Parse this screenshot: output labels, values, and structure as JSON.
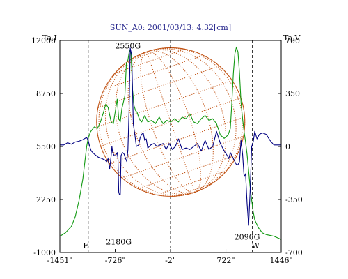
{
  "chart_data": {
    "type": "line",
    "title": "SUN_A0: 2001/03/13: 4.32[cm]",
    "left_axis_label": "Ta,I",
    "right_axis_label": "Ta,V",
    "x_ticks": [
      {
        "label": "-1451\"",
        "value": -1451
      },
      {
        "label": "-726\"",
        "value": -726
      },
      {
        "label": "-2\"",
        "value": -2
      },
      {
        "label": "722\"",
        "value": 722
      },
      {
        "label": "1446\"",
        "value": 1446
      }
    ],
    "y_left_ticks": [
      {
        "label": "12000",
        "value": 12000
      },
      {
        "label": "8750",
        "value": 8750
      },
      {
        "label": "5500",
        "value": 5500
      },
      {
        "label": "2250",
        "value": 2250
      },
      {
        "label": "-1000",
        "value": -1000
      }
    ],
    "y_right_ticks": [
      {
        "label": "700",
        "value": 700
      },
      {
        "label": "350",
        "value": 350
      },
      {
        "label": "0",
        "value": 0
      },
      {
        "label": "-350",
        "value": -350
      },
      {
        "label": "-700",
        "value": -700
      }
    ],
    "xlim": [
      -1451,
      1446
    ],
    "ylim_left": [
      -1000,
      12000
    ],
    "ylim_right": [
      -700,
      700
    ],
    "solar_limb_radius": 970,
    "dashed_lines_x": [
      -1080,
      -2,
      1070
    ],
    "annotations": [
      {
        "text": "2550G",
        "x": -560,
        "y_left": 11500
      },
      {
        "text": "2180G",
        "x": -680,
        "y_left": -500
      },
      {
        "text": "2090G",
        "x": 1000,
        "y_left": -200
      },
      {
        "text": "E",
        "x": -1110,
        "y_left": -1000
      },
      {
        "text": "W",
        "x": 1110,
        "y_left": -1000
      }
    ],
    "colors": {
      "I": "#119911",
      "V": "#000080",
      "disk": "#c05010",
      "frame": "#000000"
    },
    "series": [
      {
        "axis": "left",
        "x": [
          -1451,
          -1380,
          -1300,
          -1250,
          -1200,
          -1150,
          -1120,
          -1100,
          -1080,
          -1050,
          -1000,
          -960,
          -920,
          -880,
          -850,
          -820,
          -780,
          -750,
          -720,
          -700,
          -680,
          -660,
          -640,
          -620,
          -600,
          -580,
          -560,
          -540,
          -520,
          -500,
          -480,
          -460,
          -440,
          -420,
          -400,
          -380,
          -360,
          -340,
          -320,
          -300,
          -250,
          -200,
          -150,
          -100,
          -50,
          0,
          50,
          100,
          150,
          200,
          250,
          300,
          350,
          400,
          450,
          500,
          550,
          600,
          650,
          700,
          750,
          780,
          800,
          820,
          840,
          860,
          880,
          900,
          920,
          940,
          960,
          980,
          1000,
          1020,
          1040,
          1060,
          1080,
          1100,
          1150,
          1200,
          1250,
          1300,
          1350,
          1400,
          1446
        ],
        "y": [
          0,
          200,
          600,
          1200,
          2200,
          3500,
          4700,
          5500,
          6000,
          6400,
          6700,
          6600,
          7000,
          7600,
          8100,
          7900,
          7000,
          6900,
          7800,
          8400,
          7200,
          7000,
          7800,
          8200,
          8600,
          10600,
          10800,
          11400,
          11200,
          9000,
          8000,
          7700,
          7600,
          7300,
          7100,
          7000,
          7200,
          7400,
          7200,
          7000,
          7100,
          6900,
          7300,
          6900,
          7100,
          7000,
          7200,
          7000,
          7300,
          7200,
          7500,
          7000,
          6900,
          7200,
          7400,
          7100,
          7200,
          6900,
          6200,
          6000,
          6200,
          6600,
          8200,
          10000,
          11200,
          11600,
          11300,
          10000,
          8200,
          7200,
          6400,
          5800,
          5000,
          4000,
          3000,
          2200,
          1500,
          1000,
          500,
          200,
          100,
          50,
          0,
          -100,
          -200
        ]
      },
      {
        "axis": "right",
        "x": [
          -1451,
          -1400,
          -1350,
          -1300,
          -1250,
          -1200,
          -1150,
          -1100,
          -1080,
          -1060,
          -1040,
          -1000,
          -950,
          -900,
          -860,
          -840,
          -820,
          -800,
          -780,
          -770,
          -760,
          -740,
          -720,
          -700,
          -690,
          -680,
          -670,
          -660,
          -650,
          -630,
          -610,
          -590,
          -575,
          -560,
          -545,
          -530,
          -510,
          -490,
          -470,
          -450,
          -420,
          -400,
          -380,
          -360,
          -340,
          -320,
          -300,
          -260,
          -220,
          -180,
          -140,
          -100,
          -60,
          -20,
          20,
          60,
          100,
          150,
          200,
          250,
          300,
          350,
          400,
          450,
          500,
          550,
          600,
          650,
          700,
          740,
          760,
          780,
          800,
          820,
          840,
          860,
          880,
          900,
          920,
          940,
          960,
          980,
          1000,
          1020,
          1040,
          1060,
          1080,
          1100,
          1130,
          1160,
          1200,
          1250,
          1300,
          1350,
          1400,
          1446
        ],
        "y": [
          10,
          10,
          25,
          15,
          30,
          35,
          45,
          60,
          40,
          0,
          -30,
          -50,
          -70,
          -80,
          -90,
          -100,
          -80,
          -150,
          -60,
          0,
          -40,
          -60,
          -60,
          -40,
          -80,
          -300,
          -320,
          -320,
          -60,
          -40,
          -50,
          -80,
          -100,
          -20,
          250,
          650,
          600,
          150,
          80,
          0,
          10,
          60,
          80,
          90,
          40,
          50,
          -10,
          10,
          20,
          0,
          10,
          20,
          -20,
          20,
          -20,
          0,
          50,
          -20,
          -10,
          -20,
          0,
          20,
          -30,
          40,
          -20,
          0,
          100,
          20,
          -30,
          -60,
          -80,
          -40,
          -60,
          -80,
          -100,
          -120,
          -120,
          -100,
          40,
          -50,
          -200,
          -180,
          -380,
          -520,
          -290,
          0,
          30,
          100,
          50,
          80,
          90,
          80,
          40,
          10,
          10,
          10
        ]
      }
    ]
  }
}
